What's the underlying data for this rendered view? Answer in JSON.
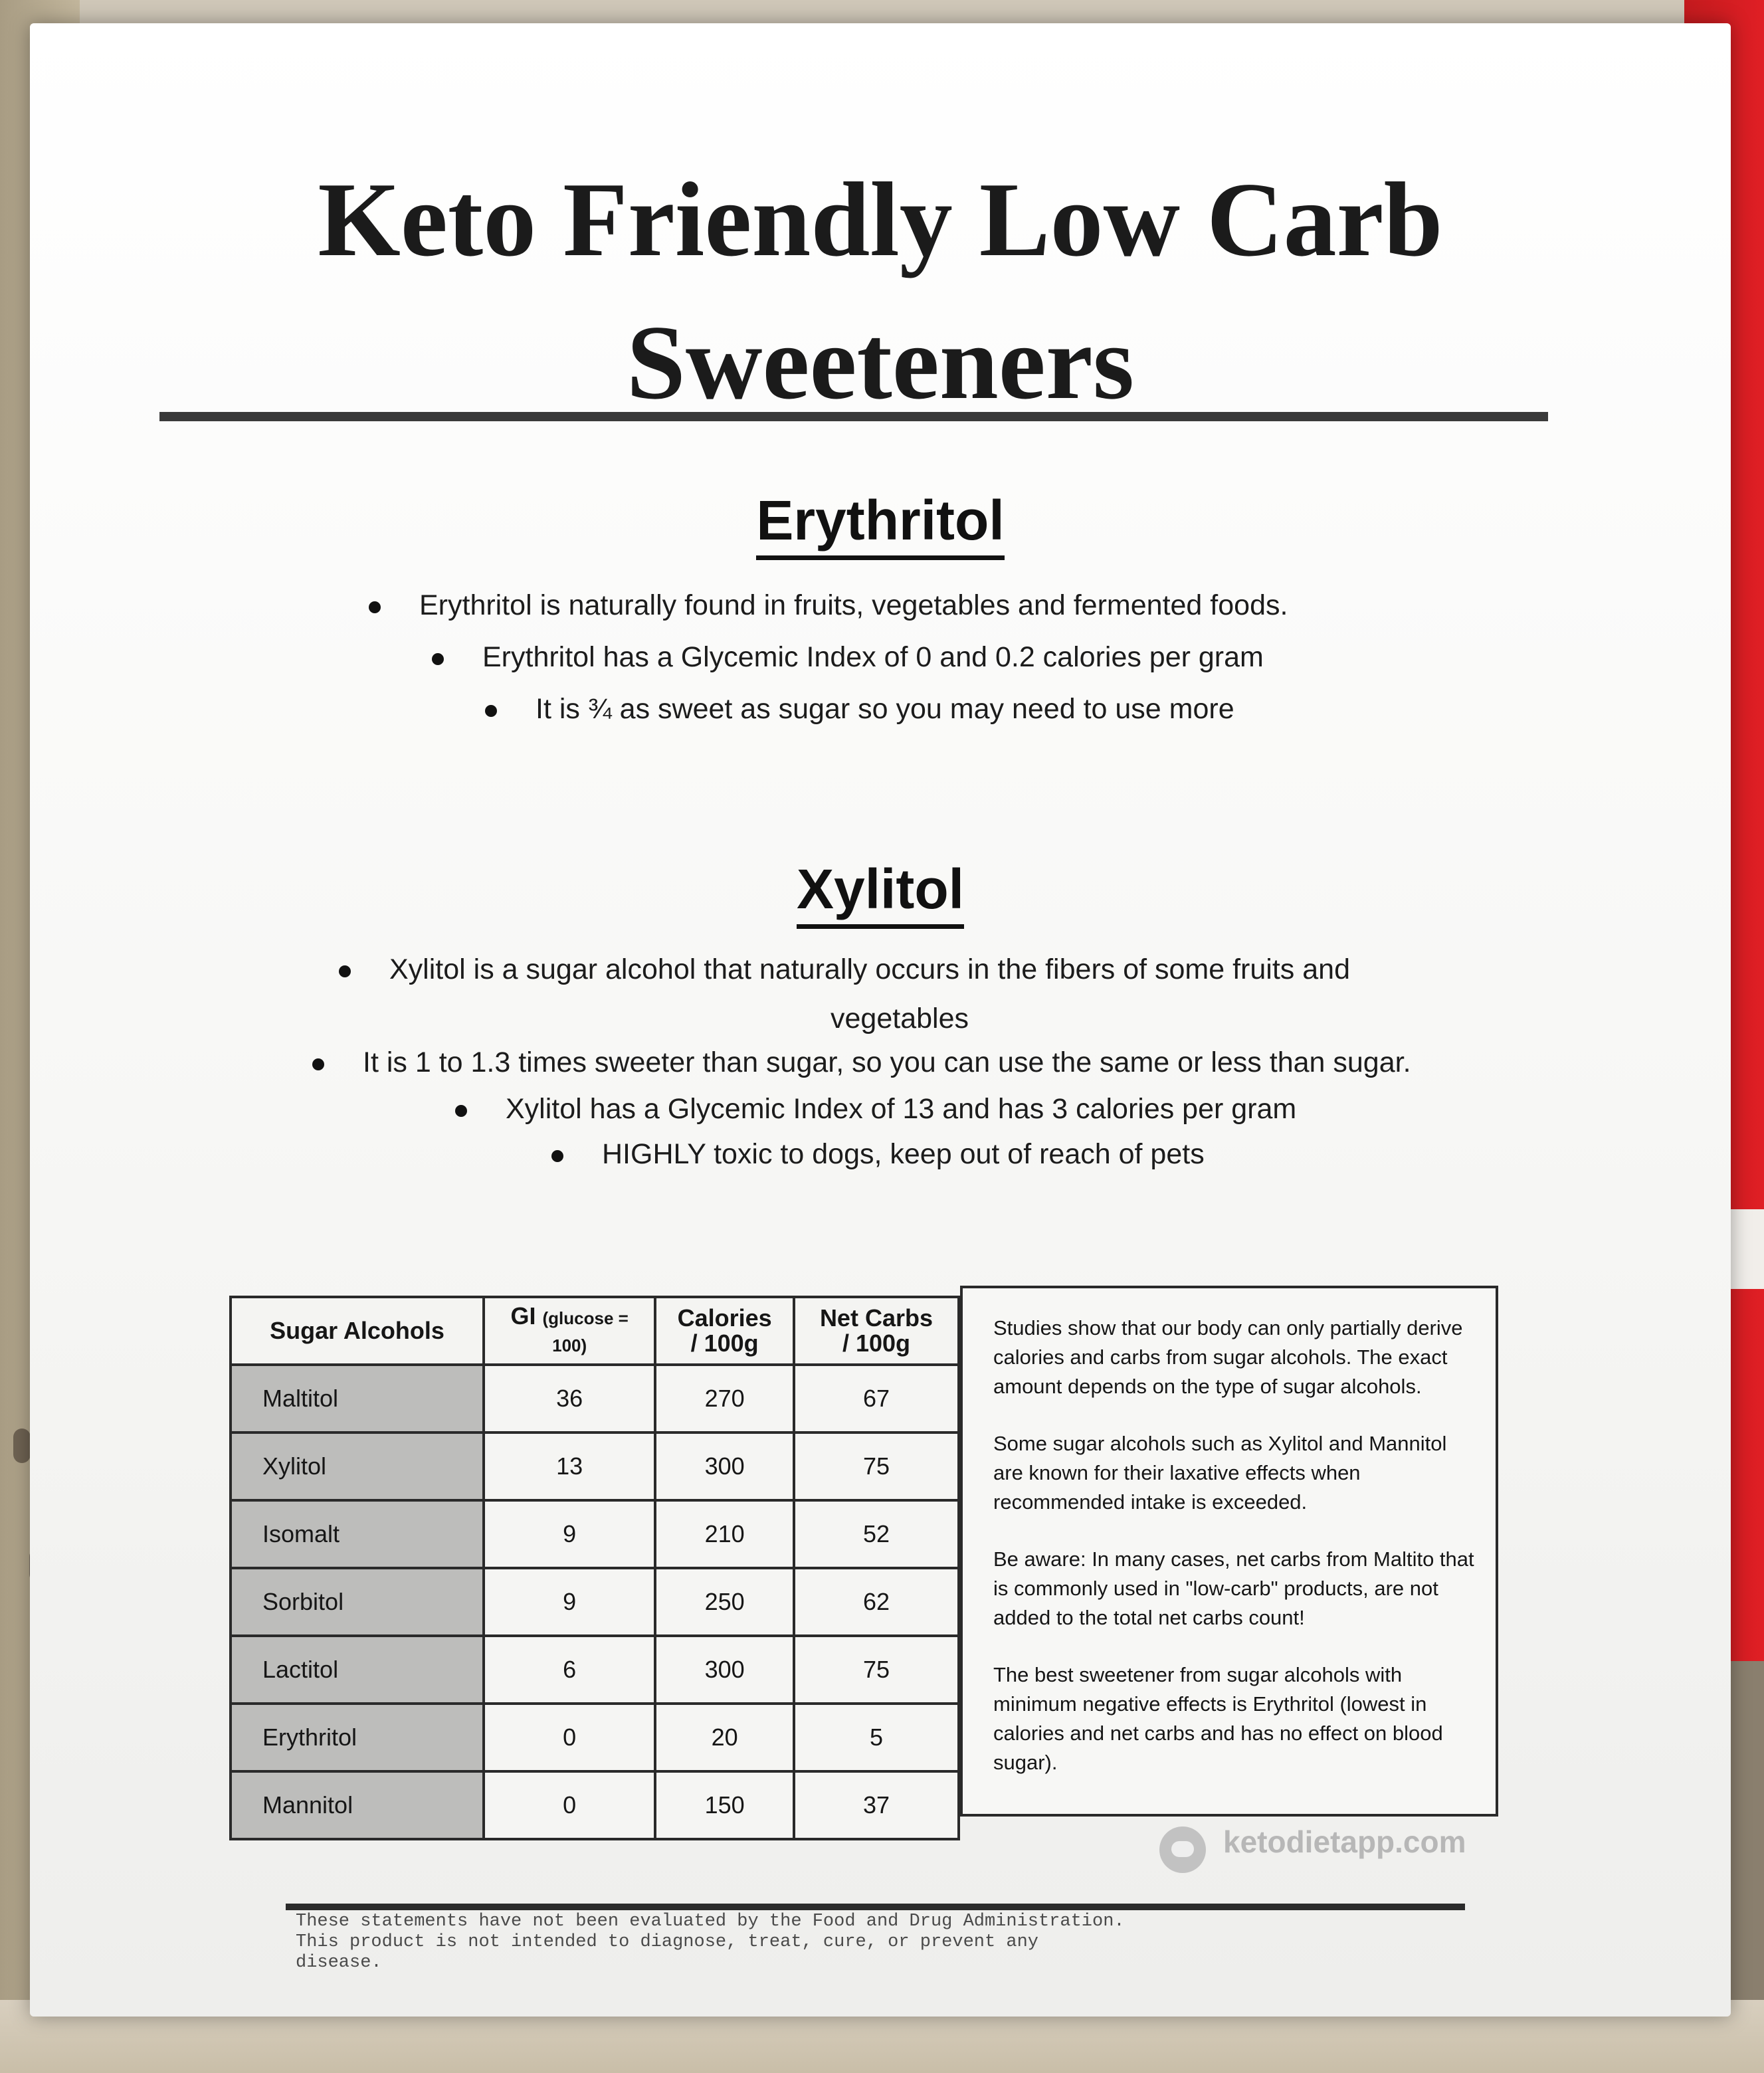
{
  "title_line1": "Keto Friendly Low Carb",
  "title_line2": "Sweeteners",
  "erythritol": {
    "heading": "Erythritol",
    "bullets": [
      "Erythritol is naturally found in fruits, vegetables and fermented foods.",
      "Erythritol has a Glycemic Index of 0 and 0.2 calories per gram",
      "It is ¾ as sweet as sugar so you may need to use more"
    ]
  },
  "xylitol": {
    "heading": "Xylitol",
    "bullets": [
      "Xylitol is a sugar alcohol that naturally occurs in the fibers of some fruits and",
      "vegetables",
      "It is 1 to 1.3 times sweeter than sugar, so you can use the same or less than sugar.",
      "Xylitol has a Glycemic Index of 13 and has 3 calories per gram",
      "HIGHLY toxic to dogs, keep out of reach of pets"
    ]
  },
  "table": {
    "headers": {
      "col1": "Sugar Alcohols",
      "col2_main": "GI",
      "col2_small": "(glucose =",
      "col2_line2": "100)",
      "col3_line1": "Calories",
      "col3_line2": "/ 100g",
      "col4_line1": "Net Carbs",
      "col4_line2": "/ 100g"
    },
    "rows": [
      {
        "name": "Maltitol",
        "gi": "36",
        "cal": "270",
        "carbs": "67"
      },
      {
        "name": "Xylitol",
        "gi": "13",
        "cal": "300",
        "carbs": "75"
      },
      {
        "name": "Isomalt",
        "gi": "9",
        "cal": "210",
        "carbs": "52"
      },
      {
        "name": "Sorbitol",
        "gi": "9",
        "cal": "250",
        "carbs": "62"
      },
      {
        "name": "Lactitol",
        "gi": "6",
        "cal": "300",
        "carbs": "75"
      },
      {
        "name": "Erythritol",
        "gi": "0",
        "cal": "20",
        "carbs": "5"
      },
      {
        "name": "Mannitol",
        "gi": "0",
        "cal": "150",
        "carbs": "37"
      }
    ]
  },
  "notes": [
    "Studies show that our body can only partially derive calories and carbs from sugar alcohols. The exact amount depends on the type of sugar alcohols.",
    "Some sugar alcohols such as Xylitol and Mannitol are known for their laxative effects when recommended intake is exceeded.",
    "Be aware: In many cases, net carbs from Maltito that is commonly used in \"low-carb\" products, are not added to the total net carbs count!",
    "The best sweetener from sugar alcohols with minimum negative effects is Erythritol (lowest in calories and net carbs and has no effect on blood sugar)."
  ],
  "brand": "ketodietapp.com",
  "disclaimer": "These statements have not been evaluated by the Food and Drug Administration.\nThis product is not intended to diagnose, treat, cure, or prevent any\ndisease."
}
